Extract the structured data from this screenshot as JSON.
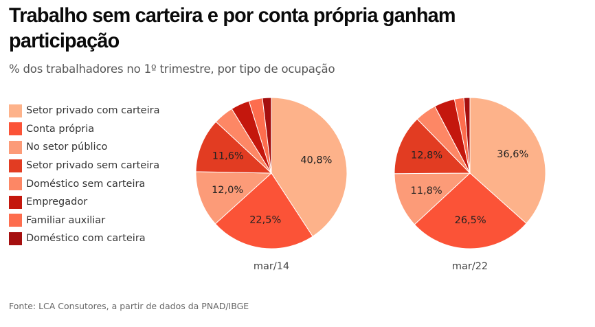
{
  "header": {
    "title": "Trabalho sem carteira e por conta própria ganham participação",
    "subtitle": "% dos trabalhadores no 1º trimestre, por tipo de ocupação"
  },
  "footer": {
    "source": "Fonte: LCA Consutores, a partir de dados da PNAD/IBGE"
  },
  "chart_data": {
    "type": "pie",
    "title": "Trabalho sem carteira e por conta própria ganham participação",
    "subtitle": "% dos trabalhadores no 1º trimestre, por tipo de ocupação",
    "legend_position": "left",
    "categories": [
      "Setor privado com carteira",
      "Conta própria",
      "No setor público",
      "Setor privado sem carteira",
      "Doméstico sem carteira",
      "Empregador",
      "Familiar auxiliar",
      "Doméstico com carteira"
    ],
    "colors": [
      "#fdb28a",
      "#fb5337",
      "#fc9b78",
      "#e23c22",
      "#fd8765",
      "#c4170d",
      "#fd6d4e",
      "#a50f0f"
    ],
    "series": [
      {
        "name": "mar/14",
        "values": [
          40.8,
          22.5,
          12.0,
          11.6,
          4.3,
          4.0,
          2.9,
          1.9
        ],
        "labels": [
          "40,8%",
          "22,5%",
          "12,0%",
          "11,6%",
          "",
          "",
          "",
          ""
        ]
      },
      {
        "name": "mar/22",
        "values": [
          36.6,
          26.5,
          11.8,
          12.8,
          4.6,
          4.4,
          2.0,
          1.3
        ],
        "labels": [
          "36,6%",
          "26,5%",
          "11,8%",
          "12,8%",
          "",
          "",
          "",
          ""
        ]
      }
    ]
  }
}
